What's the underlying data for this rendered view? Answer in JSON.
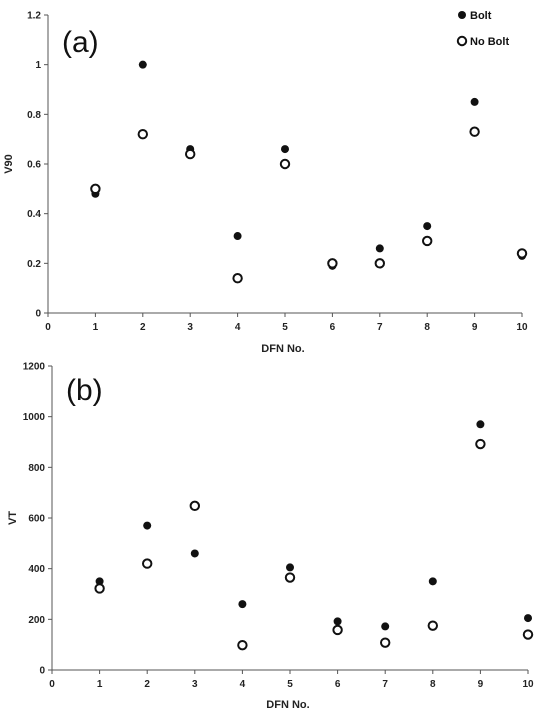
{
  "chart_data": [
    {
      "type": "scatter",
      "panel_label": "(a)",
      "xlabel": "DFN No.",
      "ylabel": "V90",
      "xlim": [
        0,
        10
      ],
      "ylim": [
        0,
        1.2
      ],
      "xticks": [
        "0",
        "1",
        "2",
        "3",
        "4",
        "5",
        "6",
        "7",
        "8",
        "9",
        "10"
      ],
      "yticks": [
        "0",
        "0.2",
        "0.4",
        "0.6",
        "0.8",
        "1",
        "1.2"
      ],
      "legend_position": "top-right",
      "x": [
        1,
        2,
        3,
        4,
        5,
        6,
        7,
        8,
        9,
        10
      ],
      "series": [
        {
          "name": "Bolt",
          "marker": "filled-circle",
          "color": "#111111",
          "values": [
            0.48,
            1.0,
            0.66,
            0.31,
            0.66,
            0.19,
            0.26,
            0.35,
            0.85,
            0.23
          ]
        },
        {
          "name": "No Bolt",
          "marker": "open-circle",
          "color": "#111111",
          "values": [
            0.5,
            0.72,
            0.64,
            0.14,
            0.6,
            0.2,
            0.2,
            0.29,
            0.73,
            0.24
          ]
        }
      ]
    },
    {
      "type": "scatter",
      "panel_label": "(b)",
      "xlabel": "DFN No.",
      "ylabel": "VT",
      "xlim": [
        0,
        10
      ],
      "ylim": [
        0,
        1200
      ],
      "xticks": [
        "0",
        "1",
        "2",
        "3",
        "4",
        "5",
        "6",
        "7",
        "8",
        "9",
        "10"
      ],
      "yticks": [
        "0",
        "200",
        "400",
        "600",
        "800",
        "1000",
        "1200"
      ],
      "x": [
        1,
        2,
        3,
        4,
        5,
        6,
        7,
        8,
        9,
        10
      ],
      "series": [
        {
          "name": "Bolt",
          "marker": "filled-circle",
          "color": "#111111",
          "values": [
            350,
            570,
            460,
            260,
            405,
            192,
            172,
            350,
            970,
            205
          ]
        },
        {
          "name": "No Bolt",
          "marker": "open-circle",
          "color": "#111111",
          "values": [
            322,
            420,
            648,
            98,
            365,
            158,
            108,
            175,
            892,
            140
          ]
        }
      ]
    }
  ]
}
